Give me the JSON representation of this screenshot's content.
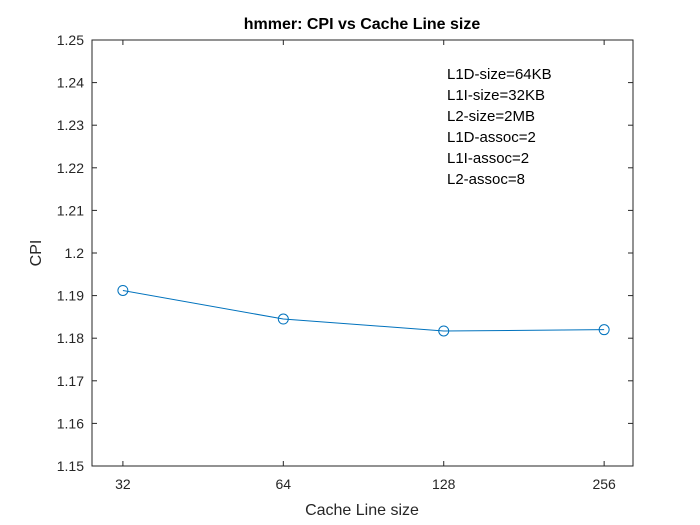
{
  "chart_data": {
    "type": "line",
    "title": "hmmer: CPI vs Cache Line size",
    "xlabel": "Cache Line size",
    "ylabel": "CPI",
    "x_scale": "log2",
    "x": [
      32,
      64,
      128,
      256
    ],
    "xticks": [
      "32",
      "64",
      "128",
      "256"
    ],
    "xlim": [
      28,
      290
    ],
    "ylim": [
      1.15,
      1.25
    ],
    "yticks": [
      "1.15",
      "1.16",
      "1.17",
      "1.18",
      "1.19",
      "1.2",
      "1.21",
      "1.22",
      "1.23",
      "1.24",
      "1.25"
    ],
    "series": [
      {
        "values": [
          1.1912,
          1.1845,
          1.1817,
          1.182
        ],
        "color": "#0072BD",
        "marker": "circle"
      }
    ],
    "annotation_lines": [
      "L1D-size=64KB",
      "L1I-size=32KB",
      "L2-size=2MB",
      "L1D-assoc=2",
      "L1I-assoc=2",
      "L2-assoc=8"
    ],
    "grid": false,
    "legend": "none"
  }
}
